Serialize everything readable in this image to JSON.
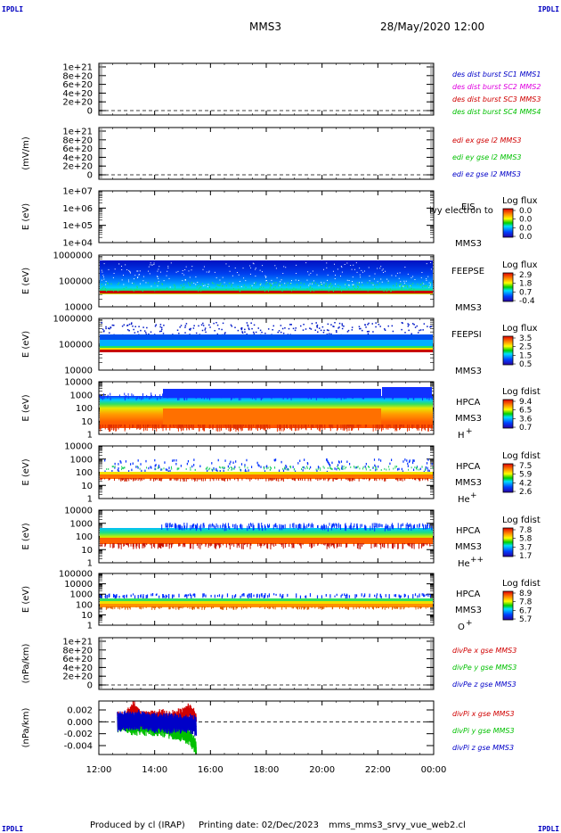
{
  "header": {
    "corner": "IPDLI",
    "spacecraft": "MMS3",
    "datetime": "28/May/2020 12:00"
  },
  "footer": {
    "produced_by": "Produced by cl (IRAP)",
    "printing_date": "Printing date: 02/Dec/2023",
    "script": "mms_mms3_srvy_vue_web2.cl"
  },
  "colors": {
    "blue": "#0000c8",
    "magenta": "#e000e0",
    "red": "#d00000",
    "green": "#00c000"
  },
  "chart_data": [
    {
      "type": "line",
      "panel": "des-dist",
      "ylabel": "",
      "yticks": [
        "1e+21",
        "8e+20",
        "6e+20",
        "4e+20",
        "2e+20",
        "0"
      ],
      "legend": [
        {
          "text": "des dist burst SC1 MMS1",
          "color": "#0000c8"
        },
        {
          "text": "des dist burst SC2 MMS2",
          "color": "#e000e0"
        },
        {
          "text": "des dist burst SC3 MMS3",
          "color": "#d00000"
        },
        {
          "text": "des dist burst SC4 MMS4",
          "color": "#00c000"
        }
      ],
      "series": []
    },
    {
      "type": "line",
      "panel": "edi",
      "ylabel": "(mV/m)",
      "yticks": [
        "1e+21",
        "8e+20",
        "6e+20",
        "4e+20",
        "2e+20",
        "0"
      ],
      "legend": [
        {
          "text": "edi ex gse l2 MMS3",
          "color": "#d00000"
        },
        {
          "text": "edi ey gse l2 MMS3",
          "color": "#00c000"
        },
        {
          "text": "edi ez gse l2 MMS3",
          "color": "#0000c8"
        }
      ],
      "series": []
    },
    {
      "type": "heatmap",
      "panel": "eis",
      "ylabel": "E (eV)",
      "yticks": [
        "1e+07",
        "1e+06",
        "1e+05",
        "1e+04"
      ],
      "label": "EIS",
      "sublabel": "MMS3",
      "overlay": "ivy electron to",
      "colorbar_title": "Log flux",
      "colorbar_values": [
        "0.0",
        "0.0",
        "0.0",
        "0.0"
      ]
    },
    {
      "type": "heatmap",
      "panel": "feepse",
      "ylabel": "E (eV)",
      "yticks": [
        "1000000",
        "100000",
        "10000"
      ],
      "label": "FEEPSE",
      "sublabel": "MMS3",
      "colorbar_title": "Log flux",
      "colorbar_values": [
        "2.9",
        "1.8",
        "0.7",
        "-0.4"
      ]
    },
    {
      "type": "heatmap",
      "panel": "feepsi",
      "ylabel": "E (eV)",
      "yticks": [
        "1000000",
        "100000",
        "10000"
      ],
      "label": "FEEPSI",
      "sublabel": "MMS3",
      "colorbar_title": "Log flux",
      "colorbar_values": [
        "3.5",
        "2.5",
        "1.5",
        "0.5"
      ]
    },
    {
      "type": "heatmap",
      "panel": "hpca-h",
      "ylabel": "E (eV)",
      "yticks": [
        "10000",
        "1000",
        "100",
        "10",
        "1"
      ],
      "label": "HPCA",
      "sublabel": "MMS3",
      "species": "H",
      "charge": "+",
      "colorbar_title": "Log fdist",
      "colorbar_values": [
        "9.4",
        "6.5",
        "3.6",
        "0.7"
      ]
    },
    {
      "type": "heatmap",
      "panel": "hpca-he",
      "ylabel": "E (eV)",
      "yticks": [
        "10000",
        "1000",
        "100",
        "10",
        "1"
      ],
      "label": "HPCA",
      "sublabel": "MMS3",
      "species": "He",
      "charge": "+",
      "colorbar_title": "Log fdist",
      "colorbar_values": [
        "7.5",
        "5.9",
        "4.2",
        "2.6"
      ]
    },
    {
      "type": "heatmap",
      "panel": "hpca-he2",
      "ylabel": "E (eV)",
      "yticks": [
        "10000",
        "1000",
        "100",
        "10",
        "1"
      ],
      "label": "HPCA",
      "sublabel": "MMS3",
      "species": "He",
      "charge": "++",
      "colorbar_title": "Log fdist",
      "colorbar_values": [
        "7.8",
        "5.8",
        "3.7",
        "1.7"
      ]
    },
    {
      "type": "heatmap",
      "panel": "hpca-o",
      "ylabel": "E (eV)",
      "yticks": [
        "100000",
        "10000",
        "1000",
        "100",
        "10",
        "1"
      ],
      "label": "HPCA",
      "sublabel": "MMS3",
      "species": "O",
      "charge": "+",
      "colorbar_title": "Log fdist",
      "colorbar_values": [
        "8.9",
        "7.8",
        "6.7",
        "5.7"
      ]
    },
    {
      "type": "line",
      "panel": "divpe",
      "ylabel": "(nPa/km)",
      "yticks": [
        "1e+21",
        "8e+20",
        "6e+20",
        "4e+20",
        "2e+20",
        "0"
      ],
      "legend": [
        {
          "text": "divPe x gse MMS3",
          "color": "#d00000"
        },
        {
          "text": "divPe y gse MMS3",
          "color": "#00c000"
        },
        {
          "text": "divPe z gse MMS3",
          "color": "#0000c8"
        }
      ],
      "series": []
    },
    {
      "type": "line",
      "panel": "divpi",
      "ylabel": "(nPa/km)",
      "yticks": [
        "0.002",
        "0.000",
        "-0.002",
        "-0.004"
      ],
      "ylim": [
        -0.0055,
        0.0035
      ],
      "xlim": [
        "12:00",
        "00:00"
      ],
      "legend": [
        {
          "text": "divPi x gse MMS3",
          "color": "#d00000"
        },
        {
          "text": "divPi y gse MMS3",
          "color": "#00c000"
        },
        {
          "text": "divPi z gse MMS3",
          "color": "#0000c8"
        }
      ],
      "series": [
        {
          "name": "divPi x gse MMS3",
          "x": [
            "12:40",
            "13:00",
            "13:15",
            "13:30",
            "13:45",
            "14:00",
            "14:15",
            "14:30",
            "14:45",
            "15:00",
            "15:15",
            "15:30"
          ],
          "values": [
            0.0003,
            0.0006,
            0.0023,
            0.0005,
            0.0004,
            0.0006,
            0.0008,
            0.0004,
            0.0006,
            0.001,
            0.0018,
            0.0006
          ]
        },
        {
          "name": "divPi y gse MMS3",
          "x": [
            "12:40",
            "13:00",
            "13:15",
            "13:30",
            "13:45",
            "14:00",
            "14:15",
            "14:30",
            "14:45",
            "15:00",
            "15:15",
            "15:30"
          ],
          "values": [
            -0.0005,
            -0.0007,
            -0.0008,
            -0.001,
            -0.0009,
            -0.0012,
            -0.0011,
            -0.0014,
            -0.0018,
            -0.002,
            -0.0025,
            -0.0045
          ]
        },
        {
          "name": "divPi z gse MMS3",
          "x": [
            "12:40",
            "13:00",
            "13:15",
            "13:30",
            "13:45",
            "14:00",
            "14:15",
            "14:30",
            "14:45",
            "15:00",
            "15:15",
            "15:30"
          ],
          "values": [
            0.0,
            0.0002,
            0.0001,
            0.0003,
            0.0,
            -0.0002,
            -0.0001,
            -0.0003,
            -0.0002,
            -0.0004,
            -0.0003,
            -0.0008
          ]
        }
      ]
    }
  ],
  "x_axis": {
    "ticks": [
      "12:00",
      "14:00",
      "16:00",
      "18:00",
      "20:00",
      "22:00",
      "00:00"
    ]
  }
}
